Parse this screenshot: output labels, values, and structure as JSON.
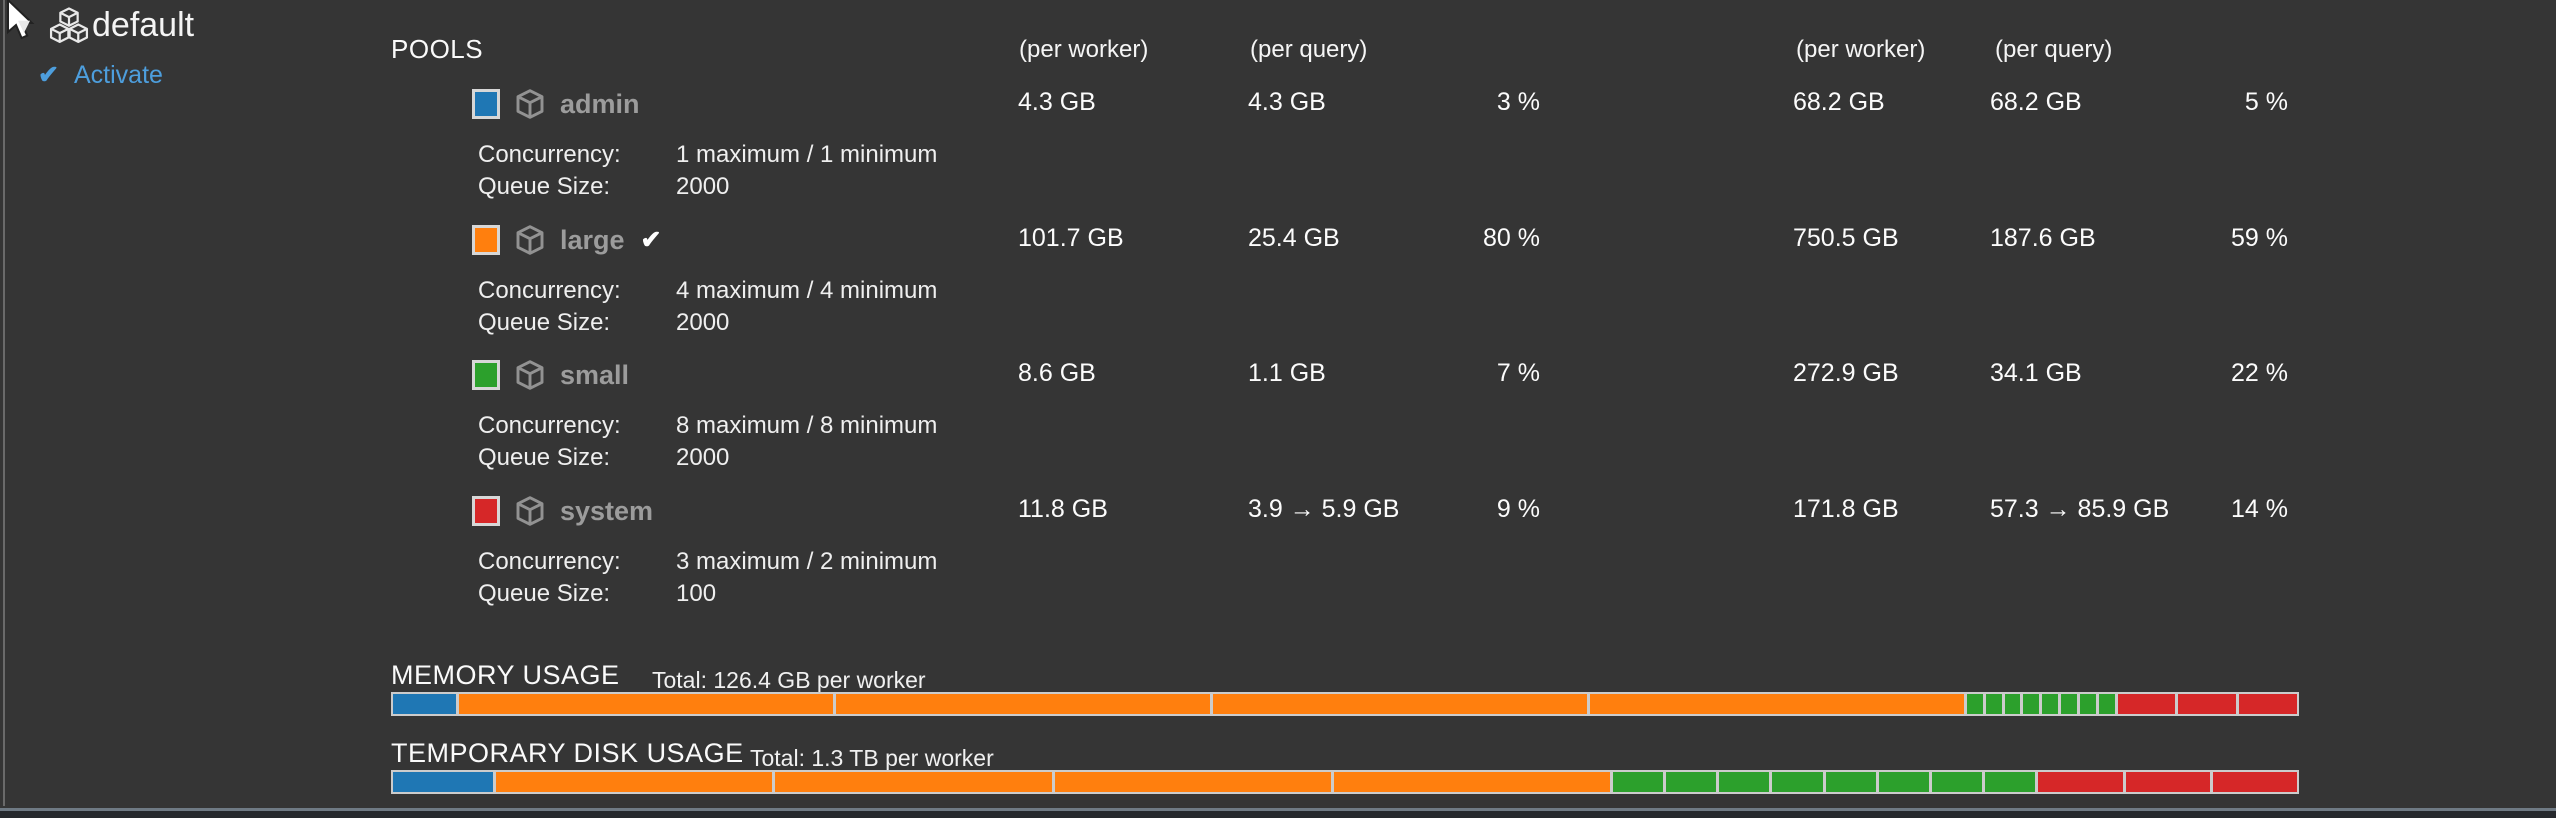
{
  "header": {
    "caret": "▾",
    "title": "default",
    "activate": {
      "check": "✔",
      "label": "Activate",
      "color": "#4d9edd"
    }
  },
  "pools": {
    "section_title": "POOLS",
    "headers": {
      "mem_worker": "(per worker)",
      "mem_query": "(per query)",
      "disk_worker": "(per worker)",
      "disk_query": "(per query)"
    },
    "labels": {
      "concurrency": "Concurrency:",
      "queue": "Queue Size:"
    },
    "rows": [
      {
        "name": "admin",
        "swatch_color": "#1f77b4",
        "concurrency": "1 maximum / 1 minimum",
        "queue_size": "2000",
        "mem_per_worker": "4.3 GB",
        "mem_per_query": "4.3 GB",
        "mem_pct": "3 %",
        "disk_per_worker": "68.2 GB",
        "disk_per_query": "68.2 GB",
        "disk_pct": "5 %"
      },
      {
        "name": "large",
        "swatch_color": "#ff7f0e",
        "check_icon": "✔",
        "concurrency": "4 maximum / 4 minimum",
        "queue_size": "2000",
        "mem_per_worker": "101.7 GB",
        "mem_per_query": "25.4 GB",
        "mem_pct": "80 %",
        "disk_per_worker": "750.5 GB",
        "disk_per_query": "187.6 GB",
        "disk_pct": "59 %"
      },
      {
        "name": "small",
        "swatch_color": "#2ca02c",
        "concurrency": "8 maximum / 8 minimum",
        "queue_size": "2000",
        "mem_per_worker": "8.6 GB",
        "mem_per_query": "1.1 GB",
        "mem_pct": "7 %",
        "disk_per_worker": "272.9 GB",
        "disk_per_query": "34.1 GB",
        "disk_pct": "22 %"
      },
      {
        "name": "system",
        "swatch_color": "#d62728",
        "concurrency": "3 maximum / 2 minimum",
        "queue_size": "100",
        "mem_per_worker": "11.8 GB",
        "mem_per_query": "3.9 → 5.9 GB",
        "mem_pct": "9 %",
        "disk_per_worker": "171.8 GB",
        "disk_per_query": "57.3 → 85.9 GB",
        "disk_pct": "14 %"
      }
    ]
  },
  "memory": {
    "title": "MEMORY USAGE",
    "total": "Total: 126.4 GB per worker",
    "segments": [
      {
        "color": "#1f77b4",
        "pct": 3.4
      },
      {
        "color": "#ff7f0e",
        "pct": 20.11
      },
      {
        "color": "#ff7f0e",
        "pct": 20.11
      },
      {
        "color": "#ff7f0e",
        "pct": 20.11
      },
      {
        "color": "#ff7f0e",
        "pct": 20.11
      },
      {
        "color": "#2ca02c",
        "pct": 0.85
      },
      {
        "color": "#2ca02c",
        "pct": 0.85
      },
      {
        "color": "#2ca02c",
        "pct": 0.85
      },
      {
        "color": "#2ca02c",
        "pct": 0.85
      },
      {
        "color": "#2ca02c",
        "pct": 0.85
      },
      {
        "color": "#2ca02c",
        "pct": 0.85
      },
      {
        "color": "#2ca02c",
        "pct": 0.85
      },
      {
        "color": "#2ca02c",
        "pct": 0.85
      },
      {
        "color": "#d62728",
        "pct": 3.11
      },
      {
        "color": "#d62728",
        "pct": 3.11
      },
      {
        "color": "#d62728",
        "pct": 3.11
      }
    ]
  },
  "disk": {
    "title": "TEMPORARY DISK USAGE",
    "total": "Total: 1.3 TB per worker",
    "segments": [
      {
        "color": "#1f77b4",
        "pct": 5.4
      },
      {
        "color": "#ff7f0e",
        "pct": 14.85
      },
      {
        "color": "#ff7f0e",
        "pct": 14.85
      },
      {
        "color": "#ff7f0e",
        "pct": 14.85
      },
      {
        "color": "#ff7f0e",
        "pct": 14.85
      },
      {
        "color": "#2ca02c",
        "pct": 2.7
      },
      {
        "color": "#2ca02c",
        "pct": 2.7
      },
      {
        "color": "#2ca02c",
        "pct": 2.7
      },
      {
        "color": "#2ca02c",
        "pct": 2.7
      },
      {
        "color": "#2ca02c",
        "pct": 2.7
      },
      {
        "color": "#2ca02c",
        "pct": 2.7
      },
      {
        "color": "#2ca02c",
        "pct": 2.7
      },
      {
        "color": "#2ca02c",
        "pct": 2.7
      },
      {
        "color": "#d62728",
        "pct": 4.53
      },
      {
        "color": "#d62728",
        "pct": 4.53
      },
      {
        "color": "#d62728",
        "pct": 4.53
      }
    ]
  }
}
